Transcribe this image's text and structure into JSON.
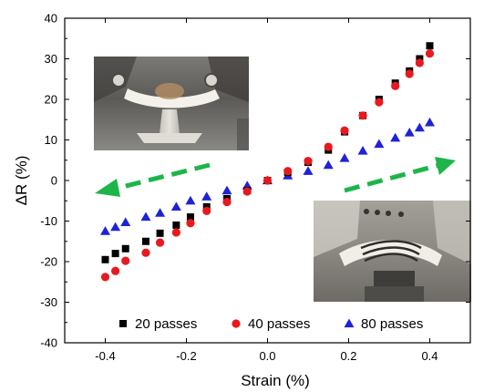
{
  "chart_data": {
    "type": "scatter",
    "xlabel": "Strain (%)",
    "ylabel": "ΔR (%)",
    "xlim": [
      -0.5,
      0.5
    ],
    "ylim": [
      -40,
      40
    ],
    "xticks": [
      -0.4,
      -0.2,
      0.0,
      0.2,
      0.4
    ],
    "xtick_labels": [
      "-0.4",
      "-0.2",
      "0.0",
      "0.2",
      "0.4"
    ],
    "yticks": [
      -40,
      -30,
      -20,
      -10,
      0,
      10,
      20,
      30,
      40
    ],
    "ytick_labels": [
      "-40",
      "-30",
      "-20",
      "-10",
      "0",
      "10",
      "20",
      "30",
      "40"
    ],
    "legend_position": "bottom-center",
    "series": [
      {
        "name": "20 passes",
        "marker": "square",
        "color": "#000000",
        "x": [
          -0.4,
          -0.375,
          -0.35,
          -0.3,
          -0.265,
          -0.225,
          -0.19,
          -0.15,
          -0.1,
          -0.05,
          0.0,
          0.05,
          0.1,
          0.15,
          0.19,
          0.235,
          0.275,
          0.315,
          0.35,
          0.375,
          0.4
        ],
        "y": [
          -19.5,
          -18.0,
          -16.8,
          -15.0,
          -13.0,
          -11.0,
          -9.0,
          -6.5,
          -4.5,
          -2.5,
          0.0,
          2.0,
          4.5,
          7.5,
          12.0,
          16.0,
          20.0,
          24.0,
          27.0,
          30.0,
          33.2
        ]
      },
      {
        "name": "40 passes",
        "marker": "circle",
        "color": "#e8191e",
        "x": [
          -0.4,
          -0.375,
          -0.35,
          -0.3,
          -0.265,
          -0.225,
          -0.19,
          -0.15,
          -0.1,
          -0.05,
          0.0,
          0.05,
          0.1,
          0.15,
          0.19,
          0.235,
          0.275,
          0.315,
          0.35,
          0.375,
          0.4
        ],
        "y": [
          -23.8,
          -22.3,
          -19.8,
          -17.8,
          -15.3,
          -12.8,
          -10.5,
          -7.5,
          -5.3,
          -2.7,
          0.0,
          2.3,
          4.8,
          8.3,
          12.3,
          16.0,
          19.3,
          23.3,
          26.3,
          29.0,
          31.3
        ]
      },
      {
        "name": "80 passes",
        "marker": "triangle",
        "color": "#1f22d6",
        "x": [
          -0.4,
          -0.375,
          -0.35,
          -0.3,
          -0.265,
          -0.225,
          -0.19,
          -0.15,
          -0.1,
          -0.05,
          0.0,
          0.05,
          0.1,
          0.15,
          0.19,
          0.235,
          0.275,
          0.315,
          0.35,
          0.375,
          0.4
        ],
        "y": [
          -12.5,
          -11.5,
          -10.3,
          -9.0,
          -8.0,
          -6.5,
          -5.0,
          -4.0,
          -2.5,
          -1.3,
          0.0,
          1.2,
          2.3,
          3.8,
          5.5,
          7.3,
          9.0,
          10.5,
          11.8,
          13.0,
          14.3
        ]
      }
    ],
    "annotations": {
      "arrow_color": "#1db54a",
      "left_arrow_direction": "left",
      "right_arrow_direction": "right",
      "inset_photos": [
        "compressive-bending-photo",
        "tensile-bending-photo"
      ]
    }
  }
}
